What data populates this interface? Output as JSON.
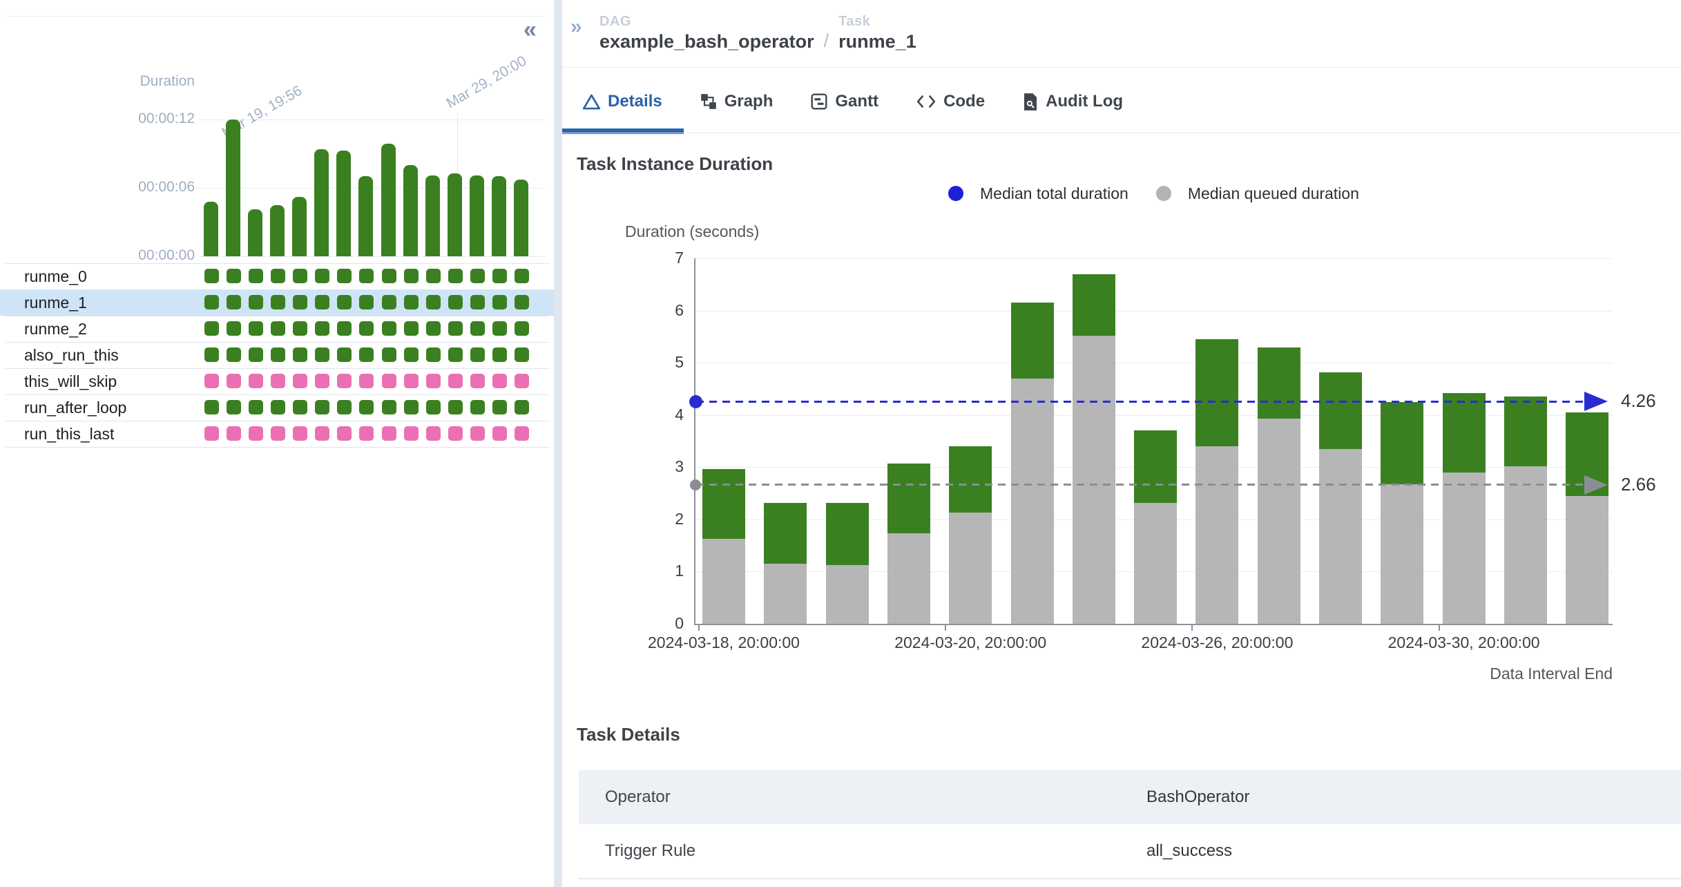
{
  "left_panel": {
    "collapse_icon": "«",
    "mini_chart": {
      "y_label": "Duration",
      "y_ticks": [
        "00:00:12",
        "00:00:06",
        "00:00:00"
      ],
      "date_labels": [
        "Mar 19, 19:56",
        "Mar 29, 20:00"
      ],
      "durations_seconds": [
        4.8,
        12.0,
        4.1,
        4.5,
        5.2,
        9.4,
        9.3,
        7.0,
        9.9,
        8.0,
        7.1,
        7.3,
        7.1,
        7.0,
        6.7
      ],
      "y_max_seconds": 12
    },
    "columns": 15,
    "tasks": [
      {
        "name": "runme_0",
        "state": "success",
        "selected": false
      },
      {
        "name": "runme_1",
        "state": "success",
        "selected": true
      },
      {
        "name": "runme_2",
        "state": "success",
        "selected": false
      },
      {
        "name": "also_run_this",
        "state": "success",
        "selected": false
      },
      {
        "name": "this_will_skip",
        "state": "skipped",
        "selected": false
      },
      {
        "name": "run_after_loop",
        "state": "success",
        "selected": false
      },
      {
        "name": "run_this_last",
        "state": "skipped",
        "selected": false
      }
    ]
  },
  "header": {
    "expand_icon": "»",
    "dag_label": "DAG",
    "dag_name": "example_bash_operator",
    "separator": "/",
    "task_label": "Task",
    "task_name": "runme_1"
  },
  "tabs": [
    {
      "label": "Details",
      "icon": "details-triangle-icon",
      "active": true
    },
    {
      "label": "Graph",
      "icon": "graph-icon",
      "active": false
    },
    {
      "label": "Gantt",
      "icon": "gantt-icon",
      "active": false
    },
    {
      "label": "Code",
      "icon": "code-icon",
      "active": false
    },
    {
      "label": "Audit Log",
      "icon": "audit-log-icon",
      "active": false
    }
  ],
  "duration_section": {
    "title": "Task Instance Duration",
    "legend": [
      {
        "label": "Median total duration",
        "color": "#1f1fd7"
      },
      {
        "label": "Median queued duration",
        "color": "#b3b3b3"
      }
    ]
  },
  "chart_data": {
    "type": "bar",
    "stacked": true,
    "title": "Task Instance Duration",
    "ylabel": "Duration (seconds)",
    "xlabel": "Data Interval End",
    "ylim": [
      0,
      7
    ],
    "y_ticks": [
      0,
      1,
      2,
      3,
      4,
      5,
      6,
      7
    ],
    "grid": true,
    "x_tick_labels": [
      "2024-03-18, 20:00:00",
      "2024-03-20, 20:00:00",
      "2024-03-26, 20:00:00",
      "2024-03-30, 20:00:00"
    ],
    "x_tick_bar_index": [
      0,
      4,
      8,
      12
    ],
    "series": [
      {
        "name": "Queued duration",
        "color": "#b6b6b6",
        "values": [
          1.63,
          1.15,
          1.12,
          1.73,
          2.13,
          4.7,
          5.52,
          2.32,
          3.4,
          3.93,
          3.35,
          2.67,
          2.9,
          3.02,
          2.45
        ]
      },
      {
        "name": "Total duration",
        "color": "#3b8020",
        "values": [
          2.97,
          2.32,
          2.32,
          3.07,
          3.4,
          6.15,
          6.7,
          3.7,
          5.45,
          5.3,
          4.82,
          4.25,
          4.42,
          4.35,
          4.05
        ]
      }
    ],
    "median_total": {
      "value": 4.26,
      "label": "4.26",
      "color": "#2a2ad4"
    },
    "median_queued": {
      "value": 2.66,
      "label": "2.66",
      "color": "#898e93"
    }
  },
  "details_section": {
    "title": "Task Details",
    "rows": [
      {
        "key": "Operator",
        "value": "BashOperator"
      },
      {
        "key": "Trigger Rule",
        "value": "all_success"
      }
    ]
  },
  "colors": {
    "success": "#3b8020",
    "skipped": "#ea70b3",
    "selected_row": "#cfe4f7",
    "queued_bar": "#b6b6b6",
    "run_bar": "#3b8020",
    "accent_tab": "#2a61a8"
  }
}
